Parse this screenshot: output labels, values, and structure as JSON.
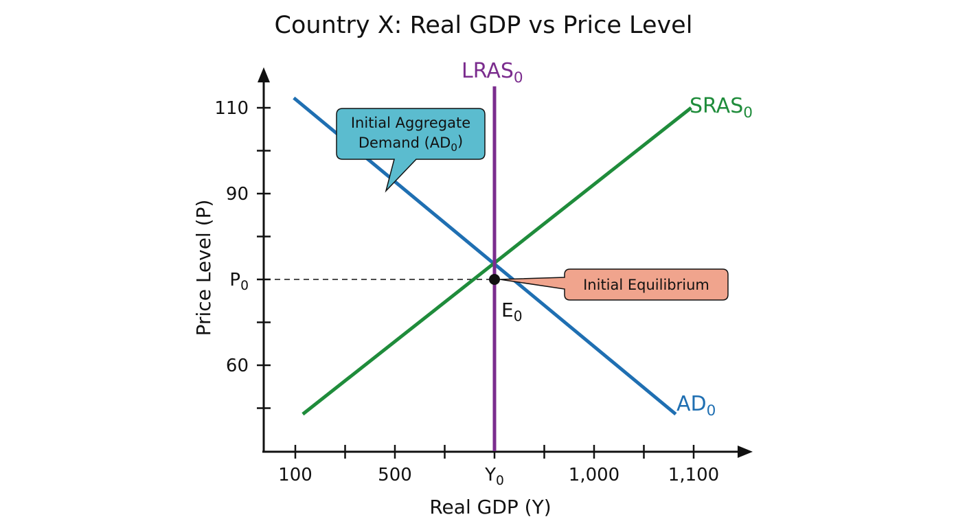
{
  "chart_data": {
    "type": "line",
    "title": "Country X: Real GDP vs Price Level",
    "xlabel": "Real GDP (Y)",
    "ylabel": "Price Level (P)",
    "x_ticks": [
      {
        "label": "100",
        "pos": 0
      },
      {
        "pos": 1
      },
      {
        "label": "500",
        "pos": 2
      },
      {
        "pos": 3
      },
      {
        "label": "Y",
        "sub": "0",
        "pos": 4
      },
      {
        "pos": 5
      },
      {
        "label": "1,000",
        "pos": 6
      },
      {
        "pos": 7
      },
      {
        "label": "1,100",
        "pos": 8
      }
    ],
    "y_ticks": [
      {
        "label": "110",
        "pos": 0
      },
      {
        "pos": 1
      },
      {
        "label": "90",
        "pos": 2
      },
      {
        "pos": 3
      },
      {
        "label": "P",
        "sub": "0",
        "pos": 4
      },
      {
        "pos": 5
      },
      {
        "label": "60",
        "pos": 6
      },
      {
        "pos": 7
      }
    ],
    "series": [
      {
        "id": "ad",
        "name": "AD",
        "name_sub": "0",
        "color": "#1f6fb2",
        "points": [
          [
            -0.03,
            -0.23
          ],
          [
            7.64,
            7.14
          ]
        ]
      },
      {
        "id": "sras",
        "name": "SRAS",
        "name_sub": "0",
        "color": "#1f8c3b",
        "points": [
          [
            0.15,
            7.14
          ],
          [
            7.95,
            0
          ]
        ]
      },
      {
        "id": "lras",
        "name": "LRAS",
        "name_sub": "0",
        "color": "#7b2d8e",
        "points": [
          [
            4,
            -0.5
          ],
          [
            4,
            8
          ]
        ]
      }
    ],
    "equilibrium": {
      "x": 4,
      "y": 4,
      "label": "E",
      "label_sub": "0"
    },
    "annotations": [
      {
        "id": "ad-callout",
        "lines": [
          "Initial Aggregate",
          "Demand (AD"
        ],
        "line2_sub": "0",
        "line2_tail": ")",
        "color": "#5bbccf"
      },
      {
        "id": "eq-callout",
        "lines": [
          "Initial Equilibrium"
        ],
        "color": "#f0a48d"
      }
    ],
    "grid": false
  }
}
